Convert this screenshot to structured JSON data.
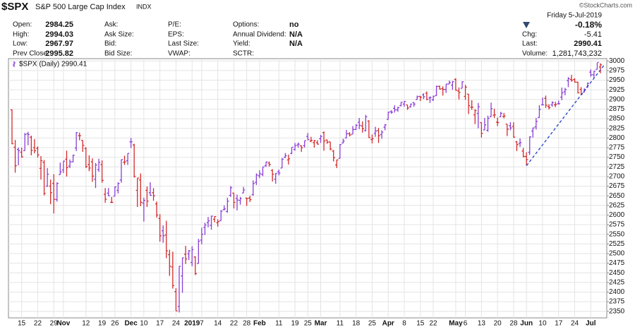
{
  "header": {
    "symbol": "$SPX",
    "name": "S&P 500 Large Cap Index",
    "exchange": "INDX",
    "credit": "©StockCharts.com",
    "date": "Friday  5-Jul-2019",
    "change_pct": "-0.18%",
    "columns": [
      [
        [
          "Open:",
          "2984.25"
        ],
        [
          "High:",
          "2994.03"
        ],
        [
          "Low:",
          "2967.97"
        ],
        [
          "Prev Close:",
          "2995.82"
        ]
      ],
      [
        [
          "Ask:"
        ],
        [
          "Ask Size:"
        ],
        [
          "Bid:"
        ],
        [
          "Bid Size:"
        ]
      ],
      [
        [
          "P/E:"
        ],
        [
          "EPS:"
        ],
        [
          "Last Size:"
        ],
        [
          "VWAP:"
        ]
      ],
      [
        [
          "Options:",
          "no"
        ],
        [
          "Annual Dividend:",
          "N/A"
        ],
        [
          "Yield:",
          "N/A"
        ],
        [
          "SCTR:"
        ]
      ]
    ],
    "right_fields": [
      [
        "Chg:",
        "-5.41"
      ],
      [
        "Last:",
        "2990.41"
      ],
      [
        "Volume:",
        "1,281,743,232"
      ]
    ]
  },
  "chart_data": {
    "type": "ohlc",
    "legend": "$SPX (Daily) 2990.41",
    "up_color": "#8a3fd6",
    "down_color": "#d42a2a",
    "grid": true,
    "ylim": [
      2333,
      3006
    ],
    "yticks": [
      2350,
      2375,
      2400,
      2425,
      2450,
      2475,
      2500,
      2525,
      2550,
      2575,
      2600,
      2625,
      2650,
      2675,
      2700,
      2725,
      2750,
      2775,
      2800,
      2825,
      2850,
      2875,
      2900,
      2925,
      2950,
      2975,
      3000
    ],
    "trendline": {
      "color": "#1f3fc8",
      "start_index": 160,
      "start_value": 2728,
      "end_index": 183,
      "end_value": 2985
    },
    "categories": [
      null,
      null,
      null,
      "15",
      null,
      null,
      null,
      null,
      "22",
      null,
      null,
      null,
      null,
      "29",
      null,
      null,
      "Nov",
      null,
      null,
      null,
      null,
      null,
      null,
      "12",
      null,
      null,
      null,
      null,
      "19",
      null,
      null,
      null,
      "26",
      null,
      null,
      null,
      null,
      "Dec",
      null,
      null,
      null,
      "10",
      null,
      null,
      null,
      null,
      "17",
      null,
      null,
      null,
      null,
      "24",
      null,
      null,
      null,
      null,
      "2019",
      null,
      null,
      "7",
      null,
      null,
      null,
      null,
      "14",
      null,
      null,
      null,
      null,
      "22",
      null,
      null,
      null,
      "28",
      null,
      null,
      null,
      "Feb",
      null,
      null,
      null,
      null,
      null,
      "11",
      null,
      null,
      null,
      null,
      "19",
      null,
      null,
      null,
      "25",
      null,
      null,
      null,
      "Mar",
      null,
      null,
      null,
      null,
      null,
      "11",
      null,
      null,
      null,
      null,
      "18",
      null,
      null,
      null,
      null,
      "25",
      null,
      null,
      null,
      null,
      "Apr",
      null,
      null,
      null,
      null,
      "8",
      null,
      null,
      null,
      null,
      "15",
      null,
      null,
      null,
      "22",
      null,
      null,
      null,
      null,
      null,
      null,
      "May",
      null,
      null,
      "6",
      null,
      null,
      null,
      null,
      "13",
      null,
      null,
      null,
      null,
      "20",
      null,
      null,
      null,
      null,
      "28",
      null,
      null,
      null,
      "Jun",
      null,
      null,
      null,
      null,
      "10",
      null,
      null,
      null,
      null,
      "17",
      null,
      null,
      null,
      null,
      "24",
      null,
      null,
      null,
      null,
      "Jul",
      null,
      null,
      null
    ],
    "bars": [
      [
        2873,
        2874,
        2784,
        2785
      ],
      [
        2776,
        2795,
        2710,
        2728
      ],
      [
        2770,
        2775,
        2729,
        2767
      ],
      [
        2763,
        2775,
        2749,
        2751
      ],
      [
        2767,
        2813,
        2767,
        2809
      ],
      [
        2811,
        2816,
        2781,
        2809
      ],
      [
        2802,
        2806,
        2755,
        2768
      ],
      [
        2775,
        2797,
        2760,
        2767
      ],
      [
        2773,
        2778,
        2749,
        2756
      ],
      [
        2721,
        2753,
        2692,
        2741
      ],
      [
        2737,
        2743,
        2651,
        2656
      ],
      [
        2675,
        2722,
        2673,
        2706
      ],
      [
        2675,
        2692,
        2628,
        2658
      ],
      [
        2682,
        2706,
        2604,
        2641
      ],
      [
        2640,
        2685,
        2635,
        2682
      ],
      [
        2705,
        2736,
        2705,
        2712
      ],
      [
        2717,
        2741,
        2709,
        2740
      ],
      [
        2745,
        2767,
        2700,
        2723
      ],
      [
        2727,
        2744,
        2722,
        2738
      ],
      [
        2738,
        2757,
        2737,
        2755
      ],
      [
        2774,
        2815,
        2766,
        2814
      ],
      [
        2806,
        2814,
        2794,
        2806
      ],
      [
        2794,
        2794,
        2764,
        2781
      ],
      [
        2773,
        2776,
        2722,
        2726
      ],
      [
        2731,
        2755,
        2714,
        2722
      ],
      [
        2738,
        2747,
        2686,
        2701
      ],
      [
        2693,
        2735,
        2670,
        2730
      ],
      [
        2718,
        2746,
        2712,
        2737
      ],
      [
        2731,
        2742,
        2684,
        2690
      ],
      [
        2654,
        2670,
        2632,
        2641
      ],
      [
        2657,
        2670,
        2649,
        2650
      ],
      [
        2633,
        2647,
        2631,
        2633
      ],
      [
        2649,
        2674,
        2649,
        2673
      ],
      [
        2664,
        2685,
        2656,
        2682
      ],
      [
        2691,
        2744,
        2684,
        2744
      ],
      [
        2737,
        2754,
        2730,
        2738
      ],
      [
        2741,
        2760,
        2730,
        2760
      ],
      [
        2790,
        2800,
        2774,
        2790
      ],
      [
        2782,
        2785,
        2697,
        2700
      ],
      [
        2664,
        2696,
        2621,
        2696
      ],
      [
        2691,
        2708,
        2623,
        2633
      ],
      [
        2631,
        2645,
        2583,
        2638
      ],
      [
        2664,
        2674,
        2621,
        2636
      ],
      [
        2658,
        2685,
        2650,
        2651
      ],
      [
        2658,
        2670,
        2637,
        2650
      ],
      [
        2629,
        2635,
        2593,
        2600
      ],
      [
        2591,
        2602,
        2531,
        2546
      ],
      [
        2559,
        2573,
        2528,
        2546
      ],
      [
        2548,
        2585,
        2488,
        2507
      ],
      [
        2497,
        2510,
        2442,
        2467
      ],
      [
        2465,
        2505,
        2409,
        2417
      ],
      [
        2401,
        2410,
        2351,
        2351
      ],
      [
        2363,
        2467,
        2347,
        2467
      ],
      [
        2442,
        2489,
        2398,
        2489
      ],
      [
        2498,
        2520,
        2473,
        2486
      ],
      [
        2499,
        2509,
        2483,
        2507
      ],
      [
        2477,
        2519,
        2467,
        2510
      ],
      [
        2491,
        2493,
        2444,
        2448
      ],
      [
        2474,
        2538,
        2474,
        2532
      ],
      [
        2535,
        2567,
        2524,
        2550
      ],
      [
        2568,
        2580,
        2548,
        2574
      ],
      [
        2580,
        2595,
        2568,
        2585
      ],
      [
        2573,
        2598,
        2562,
        2597
      ],
      [
        2589,
        2597,
        2581,
        2596
      ],
      [
        2580,
        2589,
        2570,
        2583
      ],
      [
        2585,
        2613,
        2585,
        2610
      ],
      [
        2614,
        2625,
        2612,
        2616
      ],
      [
        2609,
        2645,
        2606,
        2636
      ],
      [
        2651,
        2675,
        2647,
        2671
      ],
      [
        2657,
        2657,
        2617,
        2633
      ],
      [
        2643,
        2653,
        2612,
        2639
      ],
      [
        2638,
        2647,
        2627,
        2643
      ],
      [
        2657,
        2673,
        2657,
        2665
      ],
      [
        2644,
        2644,
        2624,
        2643
      ],
      [
        2644,
        2650,
        2634,
        2640
      ],
      [
        2653,
        2690,
        2650,
        2682
      ],
      [
        2685,
        2708,
        2678,
        2704
      ],
      [
        2702,
        2716,
        2696,
        2707
      ],
      [
        2706,
        2725,
        2701,
        2725
      ],
      [
        2728,
        2738,
        2725,
        2738
      ],
      [
        2735,
        2739,
        2726,
        2731
      ],
      [
        2716,
        2719,
        2687,
        2706
      ],
      [
        2693,
        2709,
        2681,
        2708
      ],
      [
        2712,
        2718,
        2703,
        2709
      ],
      [
        2722,
        2748,
        2722,
        2745
      ],
      [
        2750,
        2761,
        2748,
        2754
      ],
      [
        2743,
        2757,
        2731,
        2746
      ],
      [
        2760,
        2776,
        2758,
        2776
      ],
      [
        2770,
        2787,
        2767,
        2780
      ],
      [
        2782,
        2788,
        2775,
        2784
      ],
      [
        2780,
        2781,
        2764,
        2775
      ],
      [
        2780,
        2793,
        2775,
        2793
      ],
      [
        2804,
        2813,
        2794,
        2796
      ],
      [
        2792,
        2803,
        2789,
        2794
      ],
      [
        2788,
        2795,
        2775,
        2793
      ],
      [
        2788,
        2794,
        2783,
        2784
      ],
      [
        2798,
        2808,
        2787,
        2804
      ],
      [
        2814,
        2817,
        2767,
        2792
      ],
      [
        2795,
        2796,
        2785,
        2789
      ],
      [
        2790,
        2790,
        2768,
        2771
      ],
      [
        2766,
        2769,
        2739,
        2749
      ],
      [
        2730,
        2744,
        2722,
        2743
      ],
      [
        2747,
        2784,
        2747,
        2783
      ],
      [
        2787,
        2798,
        2786,
        2792
      ],
      [
        2800,
        2821,
        2799,
        2811
      ],
      [
        2811,
        2815,
        2804,
        2808
      ],
      [
        2810,
        2831,
        2810,
        2822
      ],
      [
        2822,
        2836,
        2821,
        2833
      ],
      [
        2841,
        2852,
        2823,
        2833
      ],
      [
        2831,
        2843,
        2814,
        2824
      ],
      [
        2819,
        2860,
        2817,
        2855
      ],
      [
        2844,
        2846,
        2800,
        2801
      ],
      [
        2796,
        2809,
        2786,
        2798
      ],
      [
        2812,
        2829,
        2803,
        2818
      ],
      [
        2819,
        2826,
        2787,
        2806
      ],
      [
        2809,
        2820,
        2798,
        2815
      ],
      [
        2828,
        2836,
        2820,
        2834
      ],
      [
        2848,
        2868,
        2848,
        2867
      ],
      [
        2868,
        2872,
        2863,
        2867
      ],
      [
        2877,
        2885,
        2866,
        2873
      ],
      [
        2873,
        2881,
        2868,
        2879
      ],
      [
        2884,
        2893,
        2882,
        2893
      ],
      [
        2888,
        2896,
        2881,
        2895
      ],
      [
        2886,
        2886,
        2873,
        2878
      ],
      [
        2881,
        2889,
        2879,
        2888
      ],
      [
        2892,
        2893,
        2881,
        2888
      ],
      [
        2900,
        2910,
        2899,
        2907
      ],
      [
        2908,
        2909,
        2896,
        2906
      ],
      [
        2912,
        2916,
        2901,
        2907
      ],
      [
        2916,
        2921,
        2898,
        2900
      ],
      [
        2904,
        2908,
        2891,
        2905
      ],
      [
        2899,
        2910,
        2896,
        2908
      ],
      [
        2910,
        2936,
        2909,
        2934
      ],
      [
        2934,
        2936,
        2926,
        2927
      ],
      [
        2928,
        2934,
        2910,
        2926
      ],
      [
        2926,
        2940,
        2917,
        2940
      ],
      [
        2940,
        2949,
        2940,
        2944
      ],
      [
        2937,
        2948,
        2925,
        2946
      ],
      [
        2952,
        2955,
        2923,
        2924
      ],
      [
        2922,
        2931,
        2900,
        2918
      ],
      [
        2929,
        2947,
        2929,
        2946
      ],
      [
        2908,
        2938,
        2899,
        2932
      ],
      [
        2914,
        2914,
        2862,
        2884
      ],
      [
        2880,
        2898,
        2873,
        2880
      ],
      [
        2860,
        2875,
        2836,
        2871
      ],
      [
        2864,
        2891,
        2825,
        2881
      ],
      [
        2840,
        2840,
        2801,
        2812
      ],
      [
        2821,
        2852,
        2821,
        2834
      ],
      [
        2820,
        2858,
        2816,
        2851
      ],
      [
        2855,
        2892,
        2855,
        2876
      ],
      [
        2859,
        2876,
        2852,
        2860
      ],
      [
        2841,
        2853,
        2831,
        2840
      ],
      [
        2855,
        2868,
        2855,
        2864
      ],
      [
        2856,
        2865,
        2851,
        2857
      ],
      [
        2836,
        2836,
        2805,
        2823
      ],
      [
        2832,
        2841,
        2820,
        2826
      ],
      [
        2830,
        2841,
        2801,
        2802
      ],
      [
        2790,
        2792,
        2766,
        2783
      ],
      [
        2786,
        2799,
        2777,
        2788
      ],
      [
        2766,
        2774,
        2750,
        2752
      ],
      [
        2752,
        2763,
        2729,
        2744
      ],
      [
        2763,
        2804,
        2756,
        2803
      ],
      [
        2818,
        2827,
        2801,
        2826
      ],
      [
        2829,
        2852,
        2822,
        2843
      ],
      [
        2853,
        2885,
        2852,
        2874
      ],
      [
        2886,
        2905,
        2885,
        2886
      ],
      [
        2903,
        2910,
        2878,
        2885
      ],
      [
        2882,
        2888,
        2874,
        2879
      ],
      [
        2886,
        2895,
        2881,
        2892
      ],
      [
        2886,
        2894,
        2880,
        2887
      ],
      [
        2889,
        2897,
        2887,
        2889
      ],
      [
        2906,
        2931,
        2898,
        2917
      ],
      [
        2920,
        2930,
        2911,
        2926
      ],
      [
        2949,
        2958,
        2932,
        2954
      ],
      [
        2952,
        2964,
        2946,
        2950
      ],
      [
        2952,
        2955,
        2944,
        2945
      ],
      [
        2945,
        2946,
        2916,
        2917
      ],
      [
        2926,
        2932,
        2912,
        2914
      ],
      [
        2919,
        2929,
        2918,
        2924
      ],
      [
        2932,
        2944,
        2930,
        2942
      ],
      [
        2971,
        2978,
        2959,
        2964
      ],
      [
        2964,
        2974,
        2956,
        2973
      ],
      [
        2978,
        2995,
        2978,
        2996
      ],
      [
        2984,
        2994,
        2968,
        2990
      ]
    ]
  }
}
